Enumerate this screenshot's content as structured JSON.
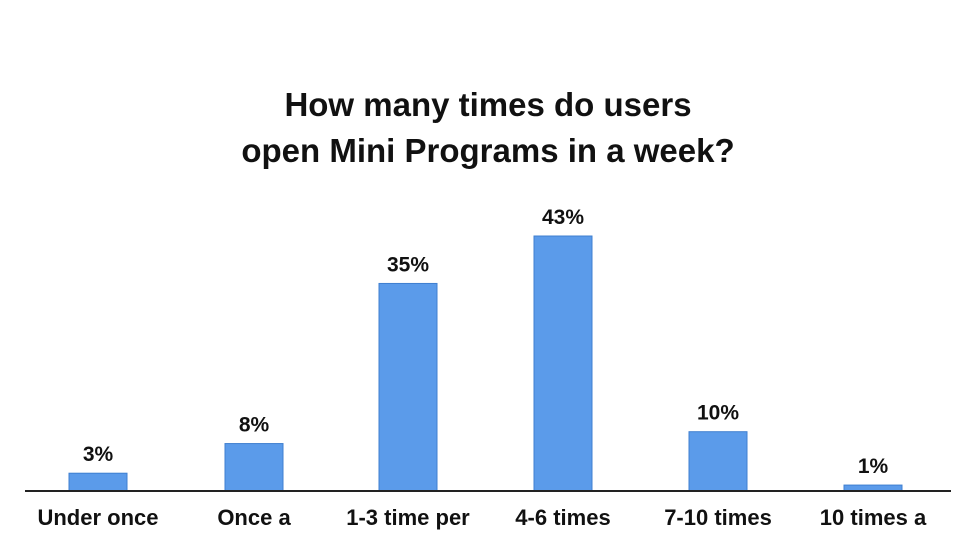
{
  "colors": {
    "bar": "#5b9bea",
    "bar_edge": "#3f7fd0",
    "axis": "#222222",
    "text": "#111111",
    "background": "#ffffff"
  },
  "chart_data": {
    "type": "bar",
    "title_lines": [
      "How many times do users",
      "open Mini Programs in a week?"
    ],
    "categories": [
      "Under once",
      "Once a",
      "1-3 time per",
      "4-6 times",
      "7-10 times",
      "10 times a"
    ],
    "values": [
      3,
      8,
      35,
      43,
      10,
      1
    ],
    "value_labels": [
      "3%",
      "8%",
      "35%",
      "43%",
      "10%",
      "1%"
    ],
    "xlabel": "",
    "ylabel": "",
    "ylim": [
      0,
      50
    ],
    "grid": false,
    "legend": "none"
  }
}
